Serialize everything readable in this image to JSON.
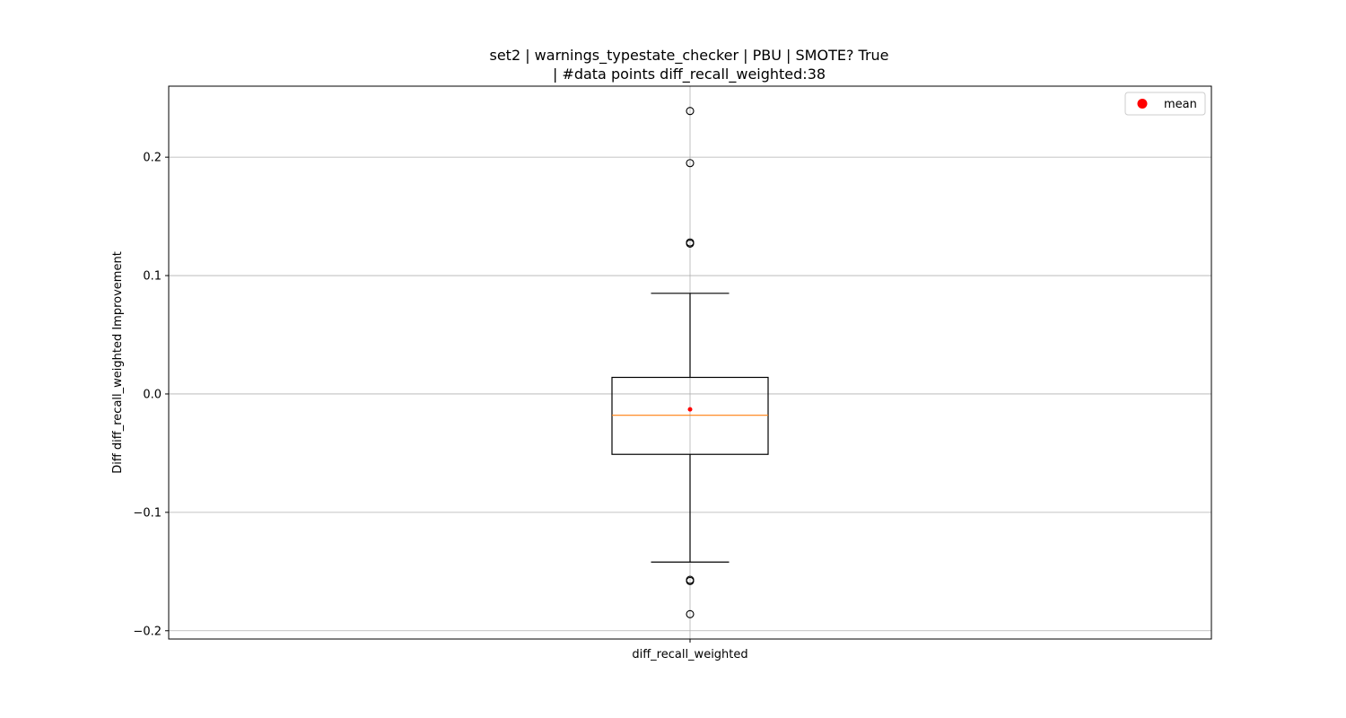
{
  "chart_data": {
    "type": "box",
    "title_line1": "set2 | warnings_typestate_checker | PBU | SMOTE? True",
    "title_line2": "| #data points diff_recall_weighted:38",
    "xlabel": "",
    "ylabel": "Diff diff_recall_weighted Improvement",
    "categories": [
      "diff_recall_weighted"
    ],
    "ylim": [
      -0.207,
      0.26
    ],
    "yticks": [
      -0.2,
      -0.1,
      0.0,
      0.1,
      0.2
    ],
    "ytick_labels": [
      "−0.2",
      "−0.1",
      "0.0",
      "0.1",
      "0.2"
    ],
    "grid": true,
    "legend": {
      "placement": "top-right",
      "entries": [
        "mean"
      ]
    },
    "boxes": [
      {
        "name": "diff_recall_weighted",
        "whisker_low": -0.142,
        "q1": -0.051,
        "median": -0.018,
        "q3": 0.014,
        "whisker_high": 0.085,
        "mean": -0.013,
        "outliers": [
          0.239,
          0.195,
          0.128,
          0.127,
          -0.157,
          -0.158,
          -0.186
        ]
      }
    ],
    "colors": {
      "median": "#ff7f0e",
      "mean": "#ff0000",
      "box": "#000000",
      "grid": "#b0b0b0"
    }
  }
}
